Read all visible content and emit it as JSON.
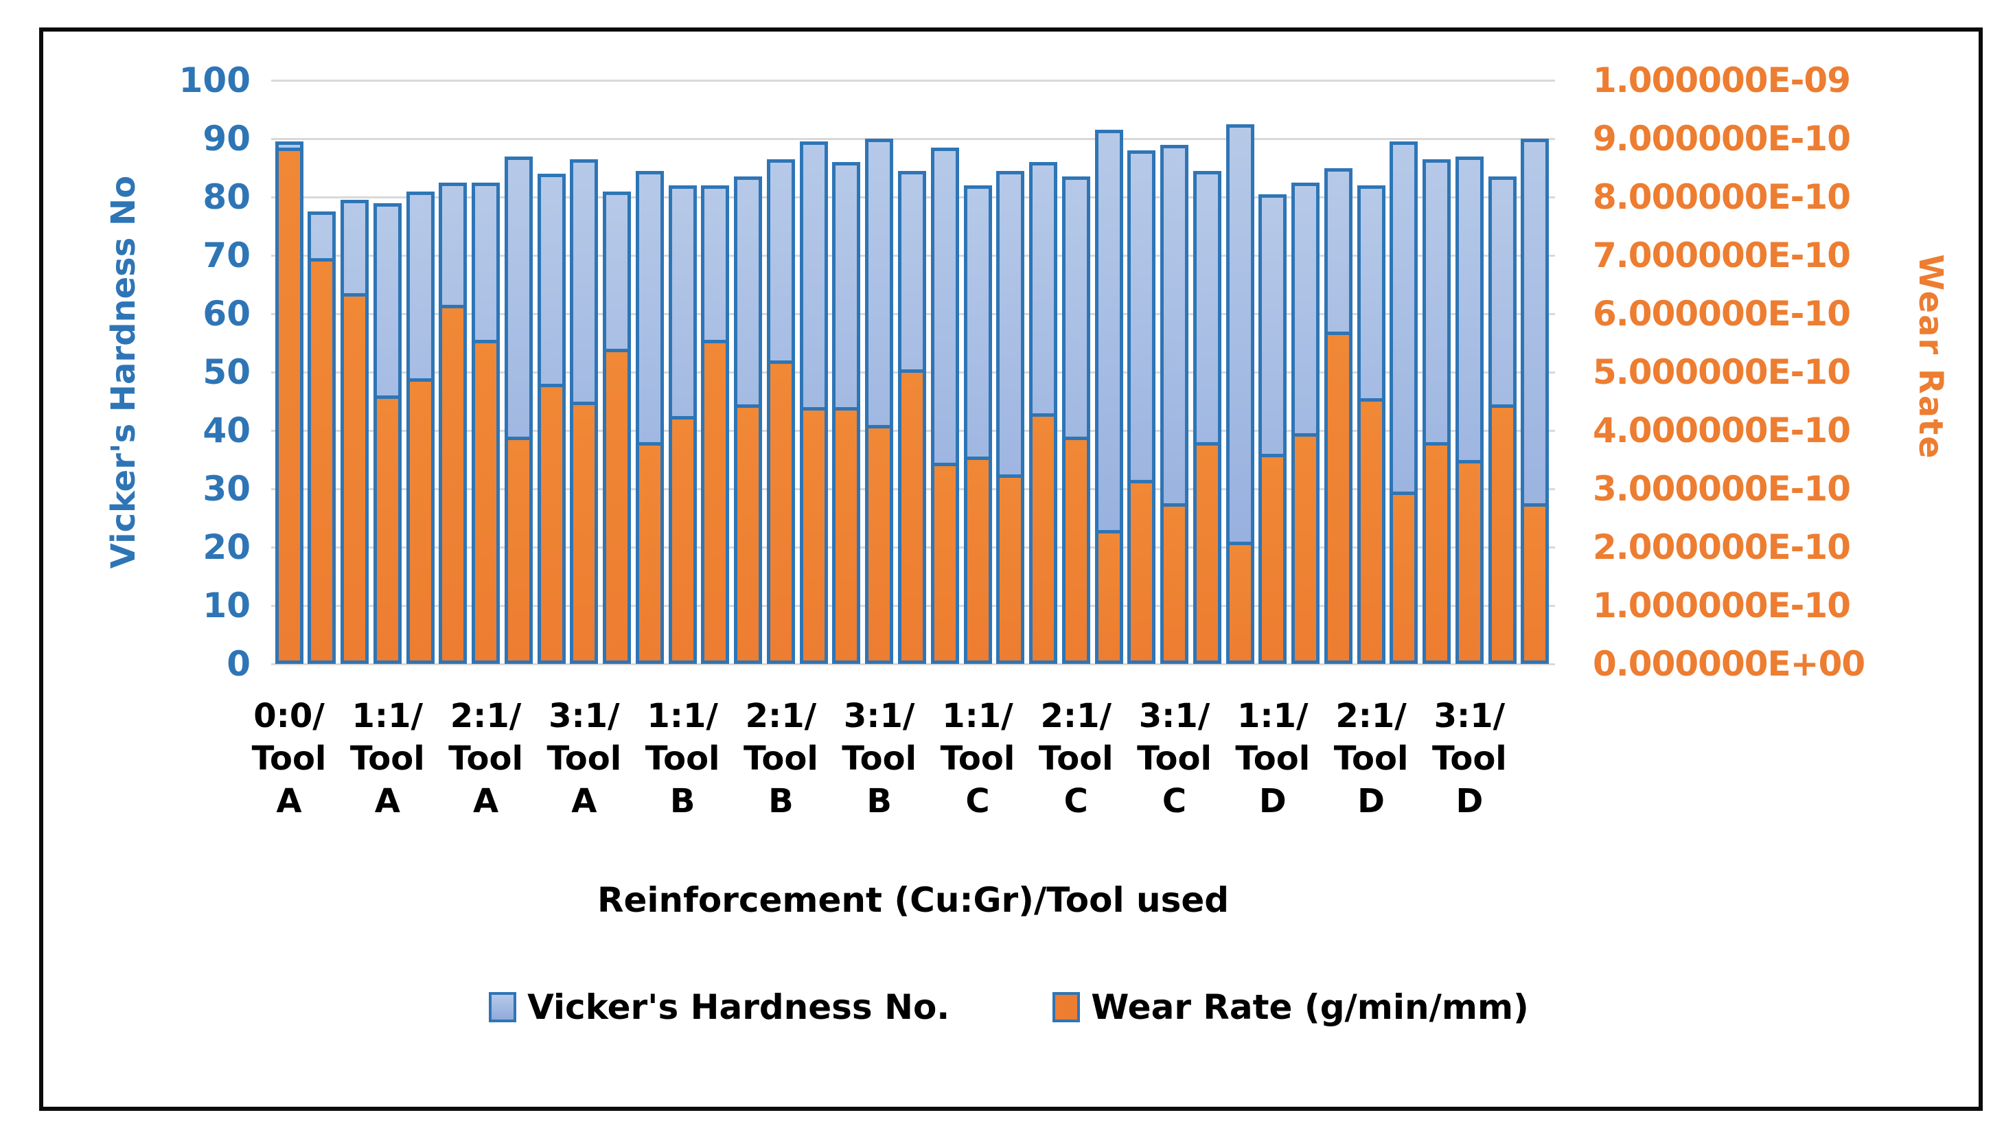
{
  "chart_data": {
    "type": "bar",
    "title": "",
    "xlabel": "Reinforcement (Cu:Gr)/Tool used",
    "legend_position": "bottom",
    "grid": true,
    "left_axis": {
      "title": "Vicker's Hardness No",
      "color": "#2E75B6",
      "min": 0,
      "max": 100,
      "ticks": [
        "0",
        "10",
        "20",
        "30",
        "40",
        "50",
        "60",
        "70",
        "80",
        "90",
        "100"
      ]
    },
    "right_axis": {
      "title": "Wear Rate",
      "color": "#ED7D31",
      "min": 0,
      "max": 1e-09,
      "ticks": [
        "0.000000E+00",
        "1.000000E-10",
        "2.000000E-10",
        "3.000000E-10",
        "4.000000E-10",
        "5.000000E-10",
        "6.000000E-10",
        "7.000000E-10",
        "8.000000E-10",
        "9.000000E-10",
        "1.000000E-09"
      ]
    },
    "legend": [
      {
        "label": "Vicker's Hardness No.",
        "color": "#8FAADC",
        "border": "#2E75B6"
      },
      {
        "label": "Wear Rate (g/min/mm)",
        "color": "#ED7D31",
        "border": "#2E75B6"
      }
    ],
    "categories": [
      {
        "lines": [
          "0:0/",
          "Tool",
          "A"
        ]
      },
      {
        "lines": [
          "1:1/",
          "Tool",
          "A"
        ]
      },
      {
        "lines": [
          "2:1/",
          "Tool",
          "A"
        ]
      },
      {
        "lines": [
          "3:1/",
          "Tool",
          "A"
        ]
      },
      {
        "lines": [
          "1:1/",
          "Tool",
          "B"
        ]
      },
      {
        "lines": [
          "2:1/",
          "Tool",
          "B"
        ]
      },
      {
        "lines": [
          "3:1/",
          "Tool",
          "B"
        ]
      },
      {
        "lines": [
          "1:1/",
          "Tool",
          "C"
        ]
      },
      {
        "lines": [
          "2:1/",
          "Tool",
          "C"
        ]
      },
      {
        "lines": [
          "3:1/",
          "Tool",
          "C"
        ]
      },
      {
        "lines": [
          "1:1/",
          "Tool",
          "D"
        ]
      },
      {
        "lines": [
          "2:1/",
          "Tool",
          "D"
        ]
      },
      {
        "lines": [
          "3:1/",
          "Tool",
          "D"
        ]
      }
    ],
    "bars_per_category": 3,
    "series": [
      {
        "name": "Vicker's Hardness No.",
        "axis": "left",
        "values": [
          89.5,
          77.5,
          79.5,
          79,
          81,
          82.5,
          82.5,
          87,
          84,
          86.5,
          81,
          84.5,
          82,
          82,
          83.5,
          86.5,
          89.5,
          86,
          90,
          84.5,
          88.5,
          82,
          84.5,
          86,
          83.5,
          91.5,
          88,
          89,
          84.5,
          92.5,
          80.5,
          82.5,
          85,
          82,
          89.5,
          86.5,
          87,
          83.5,
          90
        ]
      },
      {
        "name": "Wear Rate (g/min/mm)",
        "axis": "right",
        "values": [
          8.85e-10,
          6.95e-10,
          6.35e-10,
          4.6e-10,
          4.9e-10,
          6.15e-10,
          5.55e-10,
          3.9e-10,
          4.8e-10,
          4.5e-10,
          5.4e-10,
          3.8e-10,
          4.25e-10,
          5.55e-10,
          4.45e-10,
          5.2e-10,
          4.4e-10,
          4.4e-10,
          4.1e-10,
          5.05e-10,
          3.45e-10,
          3.55e-10,
          3.25e-10,
          4.3e-10,
          3.9e-10,
          2.3e-10,
          3.15e-10,
          2.75e-10,
          3.8e-10,
          2.1e-10,
          3.6e-10,
          3.95e-10,
          5.7e-10,
          4.55e-10,
          2.95e-10,
          3.8e-10,
          3.5e-10,
          4.45e-10,
          2.75e-10
        ]
      }
    ],
    "colors": {
      "hardness_fill": "#8FAADC",
      "hardness_fill_light": "#B6C9E8",
      "wear_fill": "#ED7D31",
      "bar_border": "#2E75B6",
      "gridline": "#D9D9D9",
      "frame_border": "#0B0B0B"
    }
  }
}
